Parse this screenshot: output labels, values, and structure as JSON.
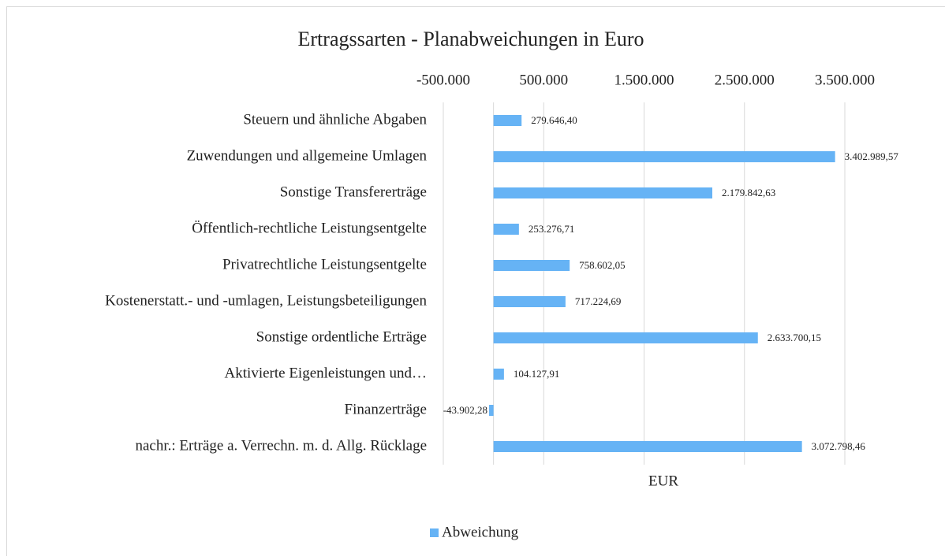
{
  "chart_data": {
    "type": "hbar",
    "title": "Ertragssarten - Planabweichungen in Euro",
    "x_label": "EUR",
    "categories": [
      "Steuern und ähnliche Abgaben",
      "Zuwendungen und allgemeine Umlagen",
      "Sonstige Transfererträge",
      "Öffentlich-rechtliche Leistungsentgelte",
      "Privatrechtliche Leistungsentgelte",
      "Kostenerstatt.- und -umlagen, Leistungsbeteiligungen",
      "Sonstige ordentliche Erträge",
      "Aktivierte Eigenleistungen und…",
      "Finanzerträge",
      "nachr.: Erträge a. Verrechn. m. d. Allg. Rücklage"
    ],
    "series": [
      {
        "name": "Abweichung",
        "color": "#66b3f5",
        "values": [
          279646.4,
          3402989.57,
          2179842.63,
          253276.71,
          758602.05,
          717224.69,
          2633700.15,
          104127.91,
          -43902.28,
          3072798.46
        ],
        "value_labels": [
          "279.646,40",
          "3.402.989,57",
          "2.179.842,63",
          "253.276,71",
          "758.602,05",
          "717.224,69",
          "2.633.700,15",
          "104.127,91",
          "-43.902,28",
          "3.072.798,46"
        ]
      }
    ],
    "xlim": [
      -500000,
      3500000
    ],
    "xticks": [
      {
        "value": -500000,
        "label": "-500.000"
      },
      {
        "value": 500000,
        "label": "500.000"
      },
      {
        "value": 1500000,
        "label": "1.500.000"
      },
      {
        "value": 2500000,
        "label": "2.500.000"
      },
      {
        "value": 3500000,
        "label": "3.500.000"
      }
    ],
    "grid": true,
    "legend": "bottom"
  }
}
